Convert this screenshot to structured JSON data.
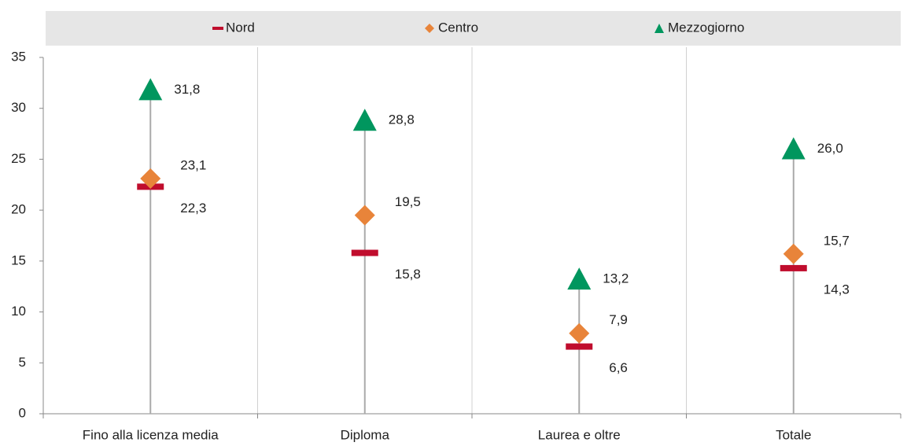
{
  "chart_data": {
    "type": "dot",
    "categories": [
      "Fino alla licenza media",
      "Diploma",
      "Laurea e oltre",
      "Totale"
    ],
    "series": [
      {
        "name": "Nord",
        "color": "#c00d2d",
        "values": [
          22.3,
          15.8,
          6.6,
          14.3
        ],
        "value_labels": [
          "22,3",
          "15,8",
          "6,6",
          "14,3"
        ]
      },
      {
        "name": "Centro",
        "color": "#e8843a",
        "values": [
          23.1,
          19.5,
          7.9,
          15.7
        ],
        "value_labels": [
          "23,1",
          "19,5",
          "7,9",
          "15,7"
        ]
      },
      {
        "name": "Mezzogiorno",
        "color": "#00965e",
        "values": [
          31.8,
          28.8,
          13.2,
          26.0
        ],
        "value_labels": [
          "31,8",
          "28,8",
          "13,2",
          "26,0"
        ]
      }
    ],
    "ylim": [
      0,
      35
    ],
    "yticks": [
      0,
      5,
      10,
      15,
      20,
      25,
      30,
      35
    ],
    "legend": "top"
  }
}
